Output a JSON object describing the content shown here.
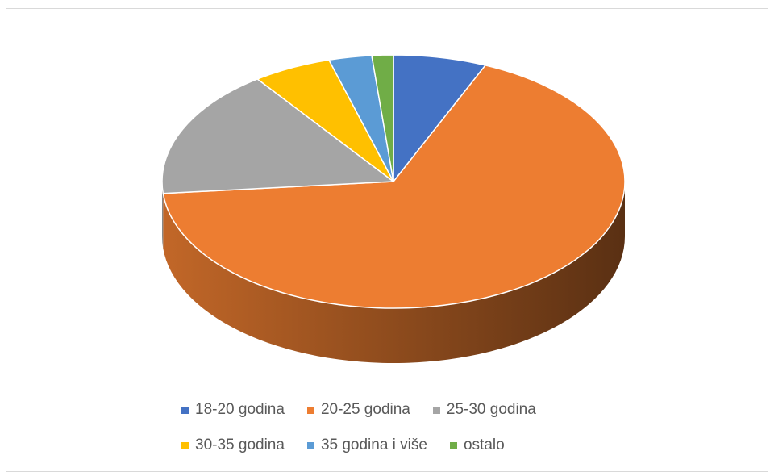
{
  "chart_data": {
    "type": "pie",
    "title": "",
    "style": "3d",
    "categories": [
      "18-20 godina",
      "20-25 godina",
      "25-30 godina",
      "30-35 godina",
      "35 godina i više",
      "ostalo"
    ],
    "values": [
      6.5,
      67,
      16.5,
      5.5,
      3,
      1.5
    ],
    "colors": [
      "#4472C4",
      "#ED7D31",
      "#A5A5A5",
      "#FFC000",
      "#5B9BD5",
      "#70AD47"
    ],
    "legend_position": "bottom"
  }
}
